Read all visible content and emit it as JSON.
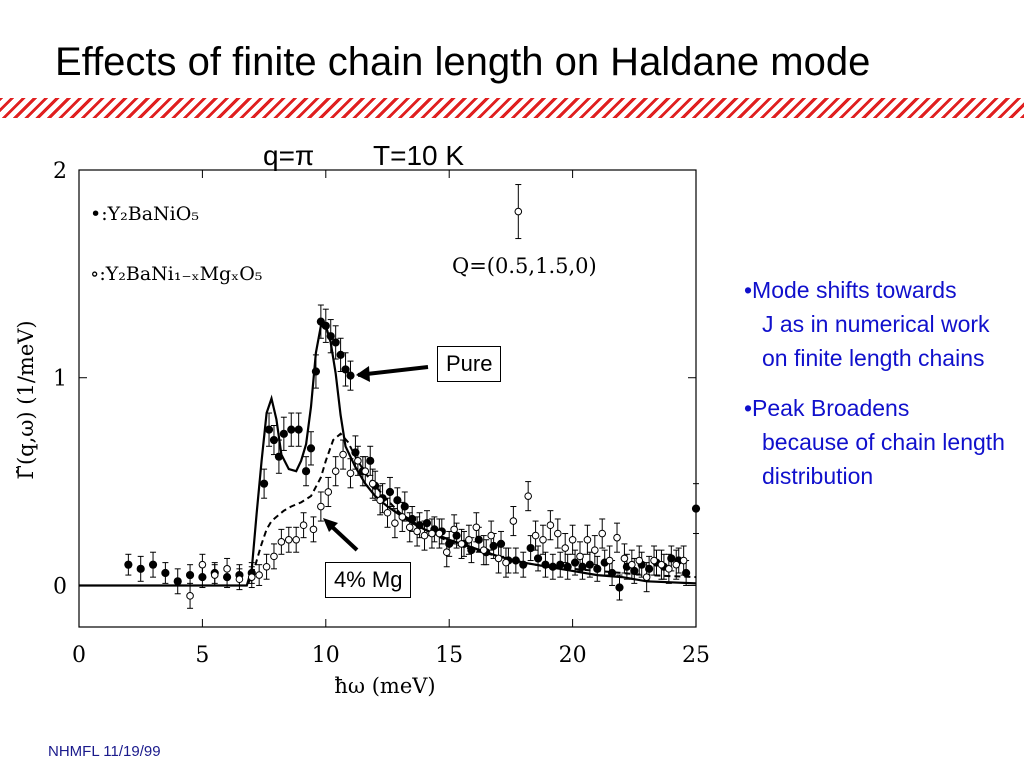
{
  "slide": {
    "title": "Effects of finite chain length on Haldane mode",
    "subtitle_q": "q=π",
    "subtitle_t": "T=10 K",
    "accent_color": "#e02020",
    "bullets": [
      {
        "first": "•Mode shifts towards",
        "rest": "J as in numerical work on finite length chains"
      },
      {
        "first": "•Peak Broadens",
        "rest": "because of chain length distribution"
      }
    ],
    "bullet_color": "#1010cc",
    "footer": "NHMFL  11/19/99"
  },
  "callouts": {
    "pure": "Pure",
    "mg": "4% Mg"
  },
  "chart_data": {
    "type": "scatter",
    "xlabel": "ħω (meV)",
    "ylabel": "Γ̃(q,ω) (1/meV)",
    "xlim": [
      0,
      25
    ],
    "ylim": [
      -0.2,
      2.0
    ],
    "xticks": [
      "0",
      "5",
      "10",
      "15",
      "20",
      "25"
    ],
    "yticks": [
      "0",
      "1",
      "2"
    ],
    "legend": [
      "•:Y₂BaNiO₅",
      "∘:Y₂BaNi₁₋ₓMgₓO₅"
    ],
    "annotation": "Q=(0.5,1.5,0)",
    "series": [
      {
        "name": "•:Y₂BaNiO₅",
        "marker": "filled",
        "x": [
          2,
          2.5,
          3,
          3.5,
          4,
          4.5,
          5,
          5.5,
          6,
          6.5,
          7,
          7.5,
          7.7,
          7.9,
          8.1,
          8.3,
          8.6,
          8.9,
          9.2,
          9.4,
          9.6,
          9.8,
          10,
          10.2,
          10.4,
          10.6,
          10.8,
          11,
          11.2,
          11.5,
          11.8,
          12,
          12.3,
          12.6,
          12.9,
          13.2,
          13.5,
          13.8,
          14.1,
          14.4,
          14.7,
          15,
          15.3,
          15.6,
          15.9,
          16.2,
          16.5,
          16.8,
          17.1,
          17.4,
          17.7,
          18,
          18.3,
          18.6,
          18.9,
          19.2,
          19.5,
          19.8,
          20.1,
          20.4,
          20.7,
          21,
          21.3,
          21.6,
          21.9,
          22.2,
          22.5,
          22.8,
          23.1,
          23.4,
          23.7,
          24,
          24.3,
          24.6,
          25
        ],
        "y": [
          0.1,
          0.08,
          0.1,
          0.06,
          0.02,
          0.05,
          0.04,
          0.06,
          0.04,
          0.05,
          0.06,
          0.49,
          0.75,
          0.7,
          0.62,
          0.73,
          0.75,
          0.75,
          0.55,
          0.66,
          1.03,
          1.27,
          1.25,
          1.2,
          1.17,
          1.11,
          1.04,
          1.01,
          0.64,
          0.55,
          0.6,
          0.48,
          0.42,
          0.45,
          0.41,
          0.38,
          0.32,
          0.29,
          0.3,
          0.27,
          0.26,
          0.2,
          0.24,
          0.2,
          0.17,
          0.22,
          0.16,
          0.19,
          0.2,
          0.12,
          0.12,
          0.1,
          0.18,
          0.13,
          0.1,
          0.09,
          0.1,
          0.09,
          0.11,
          0.09,
          0.1,
          0.08,
          0.11,
          0.06,
          -0.01,
          0.09,
          0.07,
          0.1,
          0.08,
          0.11,
          0.09,
          0.13,
          0.12,
          0.06,
          0.37
        ],
        "err": [
          0.05,
          0.06,
          0.06,
          0.05,
          0.06,
          0.05,
          0.05,
          0.05,
          0.05,
          0.05,
          0.05,
          0.07,
          0.08,
          0.07,
          0.08,
          0.08,
          0.08,
          0.08,
          0.07,
          0.08,
          0.08,
          0.08,
          0.08,
          0.08,
          0.08,
          0.08,
          0.08,
          0.07,
          0.08,
          0.07,
          0.07,
          0.07,
          0.07,
          0.07,
          0.06,
          0.07,
          0.06,
          0.06,
          0.06,
          0.06,
          0.06,
          0.06,
          0.06,
          0.06,
          0.06,
          0.06,
          0.06,
          0.06,
          0.06,
          0.06,
          0.06,
          0.06,
          0.06,
          0.06,
          0.06,
          0.06,
          0.06,
          0.06,
          0.06,
          0.06,
          0.06,
          0.06,
          0.06,
          0.06,
          0.06,
          0.06,
          0.06,
          0.06,
          0.06,
          0.06,
          0.06,
          0.06,
          0.06,
          0.06,
          0.12
        ]
      },
      {
        "name": "∘:Y₂BaNi₁₋ₓMgₓO₅",
        "marker": "open",
        "x": [
          4.5,
          5,
          5.5,
          6,
          6.5,
          7,
          7.3,
          7.6,
          7.9,
          8.2,
          8.5,
          8.8,
          9.1,
          9.5,
          9.8,
          10.1,
          10.4,
          10.7,
          11,
          11.3,
          11.6,
          11.9,
          12.2,
          12.5,
          12.8,
          13.1,
          13.4,
          13.7,
          14,
          14.3,
          14.6,
          14.9,
          15.2,
          15.5,
          15.8,
          16.1,
          16.4,
          16.7,
          17,
          17.3,
          17.6,
          17.8,
          18.2,
          18.5,
          18.8,
          19.1,
          19.4,
          19.7,
          20,
          20.3,
          20.6,
          20.9,
          21.2,
          21.5,
          21.8,
          22.1,
          22.4,
          22.7,
          23,
          23.3,
          23.6,
          23.9,
          24.2,
          24.5
        ],
        "y": [
          -0.05,
          0.1,
          0.05,
          0.08,
          0.03,
          0.04,
          0.05,
          0.09,
          0.14,
          0.21,
          0.22,
          0.22,
          0.29,
          0.27,
          0.38,
          0.45,
          0.55,
          0.63,
          0.54,
          0.6,
          0.55,
          0.49,
          0.41,
          0.35,
          0.3,
          0.33,
          0.28,
          0.26,
          0.24,
          0.25,
          0.25,
          0.16,
          0.27,
          0.2,
          0.22,
          0.28,
          0.17,
          0.24,
          0.13,
          0.11,
          0.31,
          1.8,
          0.43,
          0.24,
          0.22,
          0.29,
          0.25,
          0.18,
          0.22,
          0.14,
          0.22,
          0.17,
          0.25,
          0.12,
          0.23,
          0.13,
          0.1,
          0.12,
          0.04,
          0.12,
          0.1,
          0.08,
          0.1,
          0.12
        ],
        "err": [
          0.06,
          0.05,
          0.05,
          0.05,
          0.05,
          0.05,
          0.05,
          0.06,
          0.06,
          0.06,
          0.06,
          0.06,
          0.06,
          0.06,
          0.07,
          0.07,
          0.07,
          0.07,
          0.07,
          0.07,
          0.07,
          0.07,
          0.07,
          0.07,
          0.07,
          0.07,
          0.07,
          0.07,
          0.07,
          0.07,
          0.07,
          0.07,
          0.07,
          0.07,
          0.07,
          0.07,
          0.07,
          0.07,
          0.07,
          0.07,
          0.07,
          0.13,
          0.07,
          0.07,
          0.07,
          0.07,
          0.07,
          0.07,
          0.07,
          0.07,
          0.07,
          0.07,
          0.07,
          0.07,
          0.07,
          0.07,
          0.07,
          0.07,
          0.07,
          0.07,
          0.07,
          0.07,
          0.07,
          0.07
        ]
      }
    ],
    "fits": [
      {
        "style": "solid",
        "x": [
          0,
          6.8,
          7.0,
          7.2,
          7.4,
          7.6,
          7.8,
          8.0,
          8.2,
          8.5,
          8.8,
          9.0,
          9.2,
          9.4,
          9.6,
          9.8,
          10.0,
          10.2,
          10.4,
          10.6,
          10.8,
          11.2,
          11.6,
          12,
          12.5,
          13,
          13.5,
          14,
          15,
          16,
          17,
          18,
          19,
          20,
          21,
          22,
          23,
          25
        ],
        "y": [
          0,
          0,
          0.08,
          0.35,
          0.6,
          0.83,
          0.9,
          0.8,
          0.63,
          0.56,
          0.55,
          0.6,
          0.68,
          0.86,
          1.12,
          1.25,
          1.25,
          1.17,
          1.02,
          0.82,
          0.67,
          0.57,
          0.49,
          0.43,
          0.38,
          0.34,
          0.3,
          0.27,
          0.22,
          0.18,
          0.14,
          0.11,
          0.09,
          0.07,
          0.05,
          0.04,
          0.02,
          0.01
        ]
      },
      {
        "style": "dashed",
        "x": [
          0,
          6.8,
          7.0,
          7.2,
          7.4,
          7.6,
          7.8,
          8.0,
          8.3,
          8.6,
          9.0,
          9.4,
          9.8,
          10.0,
          10.3,
          10.6,
          10.9,
          11.2,
          11.6,
          12,
          12.5,
          13,
          13.5,
          14,
          15,
          16,
          17,
          18,
          19,
          20,
          21,
          22,
          23,
          25
        ],
        "y": [
          0,
          0,
          0.04,
          0.12,
          0.2,
          0.27,
          0.31,
          0.33,
          0.36,
          0.38,
          0.4,
          0.43,
          0.52,
          0.6,
          0.7,
          0.73,
          0.69,
          0.62,
          0.54,
          0.48,
          0.41,
          0.35,
          0.31,
          0.27,
          0.21,
          0.17,
          0.14,
          0.11,
          0.09,
          0.08,
          0.07,
          0.06,
          0.05,
          0.04
        ]
      }
    ]
  }
}
